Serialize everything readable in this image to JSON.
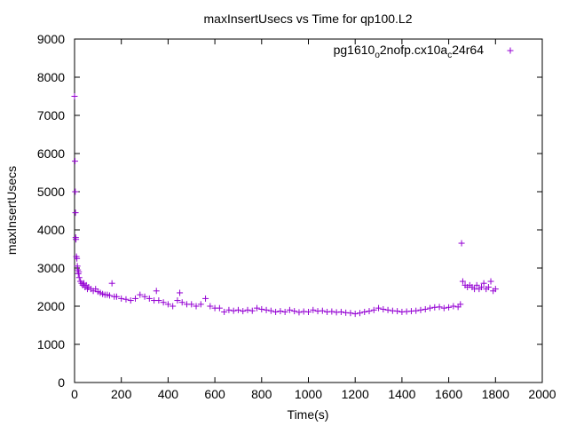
{
  "chart_data": {
    "type": "scatter",
    "title": "maxInsertUsecs vs Time for qp100.L2",
    "xlabel": "Time(s)",
    "ylabel": "maxInsertUsecs",
    "xlim": [
      0,
      2000
    ],
    "ylim": [
      0,
      9000
    ],
    "x_ticks": [
      "0",
      "200",
      "400",
      "600",
      "800",
      "1000",
      "1200",
      "1400",
      "1600",
      "1800",
      "2000"
    ],
    "y_ticks": [
      "0",
      "1000",
      "2000",
      "3000",
      "4000",
      "5000",
      "6000",
      "7000",
      "8000",
      "9000"
    ],
    "grid": false,
    "legend_position": "top-right",
    "marker": "+",
    "series": [
      {
        "name_parts": [
          "pg1610",
          "o",
          "2nofp.cx10a",
          "c",
          "24r64"
        ],
        "color": "#9400d3",
        "points": [
          [
            0,
            7500
          ],
          [
            2,
            5800
          ],
          [
            3,
            5000
          ],
          [
            4,
            4450
          ],
          [
            5,
            3800
          ],
          [
            6,
            3750
          ],
          [
            8,
            3300
          ],
          [
            10,
            3250
          ],
          [
            12,
            3050
          ],
          [
            14,
            2950
          ],
          [
            16,
            2850
          ],
          [
            18,
            2900
          ],
          [
            20,
            2750
          ],
          [
            25,
            2650
          ],
          [
            30,
            2600
          ],
          [
            35,
            2550
          ],
          [
            40,
            2600
          ],
          [
            45,
            2500
          ],
          [
            50,
            2550
          ],
          [
            55,
            2450
          ],
          [
            60,
            2500
          ],
          [
            70,
            2450
          ],
          [
            80,
            2400
          ],
          [
            90,
            2450
          ],
          [
            100,
            2380
          ],
          [
            110,
            2350
          ],
          [
            120,
            2320
          ],
          [
            130,
            2300
          ],
          [
            140,
            2300
          ],
          [
            150,
            2280
          ],
          [
            160,
            2600
          ],
          [
            170,
            2250
          ],
          [
            180,
            2250
          ],
          [
            200,
            2200
          ],
          [
            220,
            2180
          ],
          [
            240,
            2150
          ],
          [
            260,
            2200
          ],
          [
            280,
            2300
          ],
          [
            300,
            2250
          ],
          [
            320,
            2200
          ],
          [
            340,
            2150
          ],
          [
            350,
            2400
          ],
          [
            360,
            2150
          ],
          [
            380,
            2100
          ],
          [
            400,
            2050
          ],
          [
            420,
            2000
          ],
          [
            440,
            2150
          ],
          [
            450,
            2350
          ],
          [
            460,
            2100
          ],
          [
            480,
            2050
          ],
          [
            500,
            2050
          ],
          [
            520,
            2000
          ],
          [
            540,
            2050
          ],
          [
            560,
            2200
          ],
          [
            580,
            2000
          ],
          [
            600,
            1950
          ],
          [
            620,
            1950
          ],
          [
            640,
            1850
          ],
          [
            660,
            1900
          ],
          [
            680,
            1880
          ],
          [
            700,
            1900
          ],
          [
            720,
            1870
          ],
          [
            740,
            1900
          ],
          [
            760,
            1880
          ],
          [
            780,
            1950
          ],
          [
            800,
            1920
          ],
          [
            820,
            1900
          ],
          [
            840,
            1880
          ],
          [
            860,
            1850
          ],
          [
            880,
            1870
          ],
          [
            900,
            1850
          ],
          [
            920,
            1900
          ],
          [
            940,
            1870
          ],
          [
            960,
            1840
          ],
          [
            980,
            1860
          ],
          [
            1000,
            1850
          ],
          [
            1020,
            1900
          ],
          [
            1040,
            1870
          ],
          [
            1060,
            1880
          ],
          [
            1080,
            1850
          ],
          [
            1100,
            1860
          ],
          [
            1120,
            1840
          ],
          [
            1140,
            1850
          ],
          [
            1160,
            1830
          ],
          [
            1180,
            1820
          ],
          [
            1200,
            1800
          ],
          [
            1220,
            1820
          ],
          [
            1240,
            1850
          ],
          [
            1260,
            1870
          ],
          [
            1280,
            1900
          ],
          [
            1300,
            1950
          ],
          [
            1320,
            1920
          ],
          [
            1340,
            1900
          ],
          [
            1360,
            1880
          ],
          [
            1380,
            1870
          ],
          [
            1400,
            1850
          ],
          [
            1420,
            1860
          ],
          [
            1440,
            1870
          ],
          [
            1460,
            1880
          ],
          [
            1480,
            1900
          ],
          [
            1500,
            1920
          ],
          [
            1520,
            1950
          ],
          [
            1540,
            1970
          ],
          [
            1560,
            1980
          ],
          [
            1580,
            1950
          ],
          [
            1600,
            1970
          ],
          [
            1620,
            2000
          ],
          [
            1640,
            1980
          ],
          [
            1650,
            2050
          ],
          [
            1655,
            3650
          ],
          [
            1660,
            2650
          ],
          [
            1670,
            2550
          ],
          [
            1680,
            2500
          ],
          [
            1690,
            2550
          ],
          [
            1700,
            2500
          ],
          [
            1710,
            2450
          ],
          [
            1720,
            2550
          ],
          [
            1730,
            2450
          ],
          [
            1740,
            2500
          ],
          [
            1750,
            2600
          ],
          [
            1760,
            2450
          ],
          [
            1770,
            2500
          ],
          [
            1780,
            2650
          ],
          [
            1790,
            2400
          ],
          [
            1800,
            2450
          ]
        ]
      }
    ]
  }
}
